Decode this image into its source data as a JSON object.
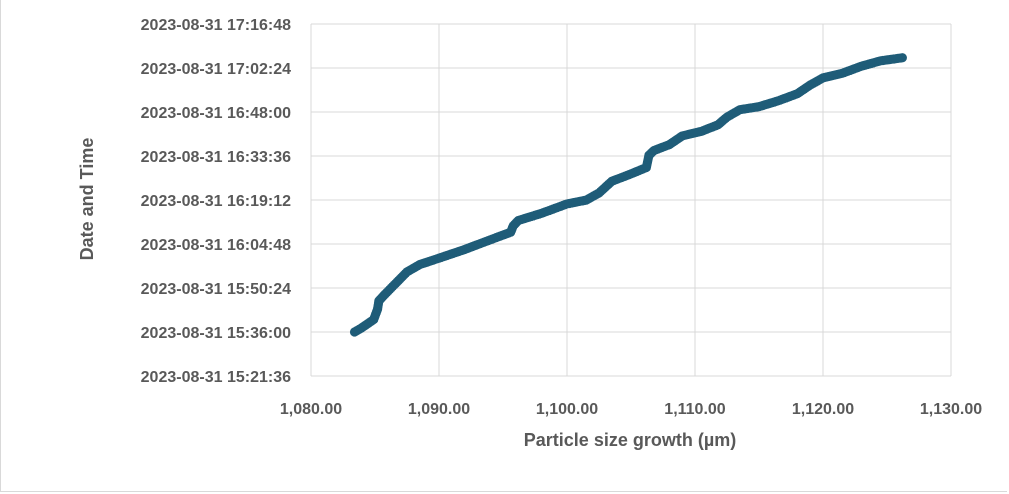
{
  "chart_data": {
    "type": "scatter",
    "title": "",
    "xlabel": "Particle size growth (µm)",
    "ylabel": "Date and Time",
    "xlim": [
      1080,
      1130
    ],
    "ylim": [
      "2023-08-31 15:21:36",
      "2023-08-31 17:16:48"
    ],
    "x_ticks": [
      "1,080.00",
      "1,090.00",
      "1,100.00",
      "1,110.00",
      "1,120.00",
      "1,130.00"
    ],
    "y_ticks": [
      "2023-08-31 15:21:36",
      "2023-08-31 15:36:00",
      "2023-08-31 15:50:24",
      "2023-08-31 16:04:48",
      "2023-08-31 16:19:12",
      "2023-08-31 16:33:36",
      "2023-08-31 16:48:00",
      "2023-08-31 17:02:24",
      "2023-08-31 17:16:48"
    ],
    "grid": true,
    "legend": "none",
    "marker_color": "#1f5c78",
    "series": [
      {
        "x": [
          1083.4,
          1083.9,
          1084.5,
          1084.9,
          1085.2,
          1085.3,
          1085.7,
          1086.5,
          1087.5,
          1088.5,
          1090.0,
          1092.0,
          1094.0,
          1095.6,
          1095.8,
          1096.2,
          1098.0,
          1100.0,
          1101.5,
          1102.5,
          1103.5,
          1105.0,
          1106.2,
          1106.4,
          1106.8,
          1108.0,
          1109.0,
          1110.5,
          1111.8,
          1112.5,
          1113.5,
          1115.0,
          1116.5,
          1118.0,
          1119.0,
          1120.0,
          1121.5,
          1123.0,
          1124.5,
          1126.2
        ],
        "y": [
          "2023-08-31 15:36:00",
          "2023-08-31 15:37:12",
          "2023-08-31 15:38:55",
          "2023-08-31 15:40:05",
          "2023-08-31 15:43:30",
          "2023-08-31 15:46:10",
          "2023-08-31 15:48:00",
          "2023-08-31 15:51:25",
          "2023-08-31 15:55:40",
          "2023-08-31 15:58:05",
          "2023-08-31 16:00:10",
          "2023-08-31 16:03:00",
          "2023-08-31 16:06:10",
          "2023-08-31 16:08:40",
          "2023-08-31 16:10:45",
          "2023-08-31 16:12:30",
          "2023-08-31 16:14:50",
          "2023-08-31 16:17:55",
          "2023-08-31 16:19:10",
          "2023-08-31 16:21:30",
          "2023-08-31 16:25:20",
          "2023-08-31 16:27:45",
          "2023-08-31 16:29:50",
          "2023-08-31 16:33:50",
          "2023-08-31 16:35:25",
          "2023-08-31 16:37:20",
          "2023-08-31 16:40:10",
          "2023-08-31 16:41:40",
          "2023-08-31 16:43:50",
          "2023-08-31 16:46:20",
          "2023-08-31 16:48:45",
          "2023-08-31 16:49:45",
          "2023-08-31 16:51:40",
          "2023-08-31 16:54:00",
          "2023-08-31 16:56:50",
          "2023-08-31 16:59:10",
          "2023-08-31 17:00:40",
          "2023-08-31 17:03:00",
          "2023-08-31 17:04:45",
          "2023-08-31 17:05:45"
        ]
      }
    ]
  }
}
